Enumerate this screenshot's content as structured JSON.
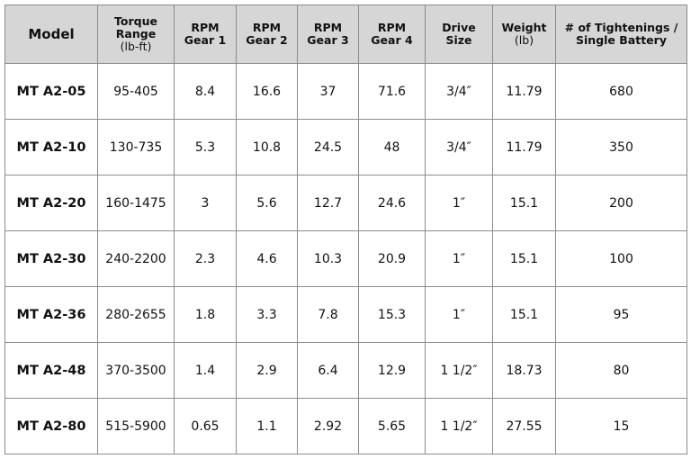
{
  "table": {
    "header": [
      {
        "lines": [
          "Model"
        ]
      },
      {
        "lines": [
          "Torque",
          "Range"
        ],
        "unit": "(lb-ft)"
      },
      {
        "lines": [
          "RPM",
          "Gear 1"
        ]
      },
      {
        "lines": [
          "RPM",
          "Gear 2"
        ]
      },
      {
        "lines": [
          "RPM",
          "Gear 3"
        ]
      },
      {
        "lines": [
          "RPM",
          "Gear 4"
        ]
      },
      {
        "lines": [
          "Drive",
          "Size"
        ]
      },
      {
        "lines": [
          "Weight"
        ],
        "unit": "(lb)"
      },
      {
        "lines": [
          "# of Tightenings /",
          "Single Battery"
        ]
      }
    ],
    "rows": [
      [
        "MT A2-05",
        "95-405",
        "8.4",
        "16.6",
        "37",
        "71.6",
        "3/4″",
        "11.79",
        "680"
      ],
      [
        "MT A2-10",
        "130-735",
        "5.3",
        "10.8",
        "24.5",
        "48",
        "3/4″",
        "11.79",
        "350"
      ],
      [
        "MT A2-20",
        "160-1475",
        "3",
        "5.6",
        "12.7",
        "24.6",
        "1″",
        "15.1",
        "200"
      ],
      [
        "MT A2-30",
        "240-2200",
        "2.3",
        "4.6",
        "10.3",
        "20.9",
        "1″",
        "15.1",
        "100"
      ],
      [
        "MT A2-36",
        "280-2655",
        "1.8",
        "3.3",
        "7.8",
        "15.3",
        "1″",
        "15.1",
        "95"
      ],
      [
        "MT A2-48",
        "370-3500",
        "1.4",
        "2.9",
        "6.4",
        "12.9",
        "1 1/2″",
        "18.73",
        "80"
      ],
      [
        "MT A2-80",
        "515-5900",
        "0.65",
        "1.1",
        "2.92",
        "5.65",
        "1 1/2″",
        "27.55",
        "15"
      ]
    ]
  }
}
